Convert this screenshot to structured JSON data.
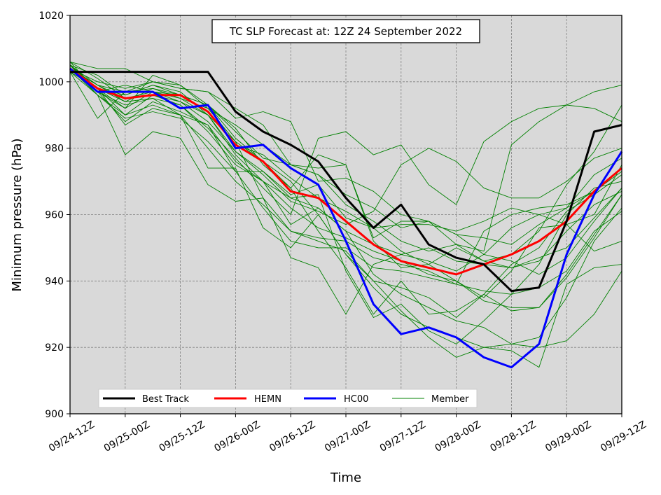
{
  "chart_data": {
    "type": "line",
    "title": "TC SLP Forecast at: 12Z 24 September 2022",
    "xlabel": "Time",
    "ylabel": "Minimum pressure (hPa)",
    "ylim": [
      900,
      1020
    ],
    "yticks": [
      900,
      920,
      940,
      960,
      980,
      1000,
      1020
    ],
    "categories": [
      "09/24-12Z",
      "09/24-18Z",
      "09/25-00Z",
      "09/25-06Z",
      "09/25-12Z",
      "09/25-18Z",
      "09/26-00Z",
      "09/26-06Z",
      "09/26-12Z",
      "09/26-18Z",
      "09/27-00Z",
      "09/27-06Z",
      "09/27-12Z",
      "09/27-18Z",
      "09/28-00Z",
      "09/28-06Z",
      "09/28-12Z",
      "09/28-18Z",
      "09/29-00Z",
      "09/29-06Z",
      "09/29-12Z"
    ],
    "xtick_labels": [
      "09/24-12Z",
      "09/25-00Z",
      "09/25-12Z",
      "09/26-00Z",
      "09/26-12Z",
      "09/27-00Z",
      "09/27-12Z",
      "09/28-00Z",
      "09/28-12Z",
      "09/29-00Z",
      "09/29-12Z"
    ],
    "grid": true,
    "legend_position": "bottom-left",
    "legend": [
      "Best Track",
      "HEMN",
      "HC00",
      "Member"
    ],
    "series": [
      {
        "name": "Best Track",
        "color": "#000000",
        "values": [
          1003,
          1003,
          1003,
          1003,
          1003,
          1003,
          991,
          985,
          981,
          976,
          965,
          956,
          963,
          951,
          947,
          945,
          937,
          938,
          958,
          985,
          987
        ]
      },
      {
        "name": "HEMN",
        "color": "#ff0000",
        "values": [
          1004,
          998,
          995,
          996,
          996,
          991,
          981,
          976,
          967,
          965,
          958,
          951,
          946,
          944,
          942,
          945,
          948,
          952,
          958,
          967,
          974
        ]
      },
      {
        "name": "HC00",
        "color": "#0000ff",
        "values": [
          1004,
          997,
          997,
          997,
          992,
          993,
          980,
          981,
          974,
          969,
          952,
          933,
          924,
          926,
          923,
          917,
          914,
          921,
          948,
          966,
          979
        ]
      }
    ],
    "members": {
      "name": "Member",
      "color": "#008000",
      "values": [
        [
          1006,
          1004,
          1004,
          1000,
          998,
          997,
          992,
          987,
          975,
          972,
          966,
          962,
          956,
          958,
          954,
          953,
          951,
          957,
          962,
          967,
          974
        ],
        [
          1005,
          999,
          995,
          997,
          995,
          992,
          987,
          981,
          975,
          972,
          963,
          958,
          952,
          949,
          951,
          946,
          944,
          947,
          950,
          959,
          968
        ],
        [
          1004,
          997,
          988,
          994,
          991,
          987,
          976,
          970,
          957,
          962,
          955,
          942,
          936,
          932,
          928,
          926,
          921,
          920,
          922,
          930,
          943
        ],
        [
          1005,
          1002,
          996,
          999,
          996,
          993,
          983,
          976,
          970,
          960,
          948,
          938,
          930,
          926,
          923,
          920,
          921,
          923,
          935,
          952,
          962
        ],
        [
          1003,
          996,
          978,
          985,
          983,
          969,
          964,
          965,
          947,
          944,
          930,
          945,
          948,
          950,
          946,
          945,
          944,
          946,
          955,
          963,
          967
        ],
        [
          1004,
          1000,
          998,
          1000,
          998,
          997,
          989,
          991,
          988,
          970,
          971,
          967,
          960,
          958,
          954,
          948,
          946,
          942,
          947,
          958,
          968
        ],
        [
          1005,
          998,
          994,
          998,
          996,
          991,
          981,
          978,
          971,
          965,
          961,
          956,
          949,
          945,
          940,
          934,
          932,
          932,
          941,
          953,
          966
        ],
        [
          1003,
          989,
          997,
          1000,
          999,
          993,
          986,
          975,
          968,
          955,
          944,
          930,
          940,
          930,
          931,
          936,
          931,
          932,
          942,
          954,
          966
        ],
        [
          1004,
          996,
          990,
          996,
          993,
          986,
          977,
          968,
          960,
          983,
          985,
          978,
          981,
          969,
          963,
          982,
          988,
          992,
          993,
          997,
          999
        ],
        [
          1006,
          997,
          992,
          1002,
          999,
          992,
          982,
          965,
          955,
          952,
          949,
          940,
          938,
          935,
          929,
          936,
          945,
          950,
          961,
          966,
          972
        ],
        [
          1004,
          999,
          994,
          995,
          993,
          985,
          975,
          970,
          962,
          956,
          953,
          949,
          946,
          942,
          940,
          935,
          943,
          956,
          957,
          960,
          975
        ],
        [
          1006,
          1001,
          995,
          996,
          994,
          988,
          979,
          972,
          964,
          961,
          957,
          961,
          975,
          980,
          976,
          968,
          965,
          965,
          970,
          977,
          980
        ],
        [
          1005,
          997,
          993,
          995,
          990,
          980,
          970,
          963,
          955,
          953,
          952,
          947,
          945,
          943,
          939,
          937,
          936,
          938,
          943,
          955,
          961
        ],
        [
          1003,
          998,
          987,
          992,
          990,
          974,
          974,
          956,
          950,
          960,
          948,
          940,
          931,
          923,
          917,
          920,
          919,
          914,
          939,
          944,
          945
        ],
        [
          1005,
          998,
          996,
          999,
          997,
          990,
          979,
          973,
          965,
          962,
          955,
          951,
          948,
          946,
          943,
          948,
          956,
          960,
          962,
          972,
          977
        ],
        [
          1004,
          999,
          997,
          998,
          995,
          990,
          978,
          970,
          965,
          966,
          943,
          929,
          933,
          925,
          921,
          928,
          936,
          945,
          960,
          968,
          970
        ],
        [
          1004,
          998,
          992,
          997,
          996,
          993,
          985,
          977,
          975,
          974,
          975,
          952,
          944,
          945,
          950,
          946,
          948,
          955,
          969,
          979,
          993
        ],
        [
          1005,
          996,
          989,
          991,
          989,
          982,
          973,
          973,
          966,
          969,
          959,
          956,
          957,
          957,
          955,
          958,
          962,
          960,
          957,
          949,
          952
        ],
        [
          1004,
          997,
          999,
          997,
          994,
          990,
          982,
          976,
          968,
          978,
          975,
          953,
          958,
          958,
          951,
          949,
          981,
          988,
          993,
          992,
          988
        ],
        [
          1005,
          998,
          990,
          993,
          990,
          987,
          973,
          962,
          952,
          950,
          950,
          944,
          943,
          941,
          939,
          955,
          960,
          962,
          963,
          967,
          973
        ]
      ]
    }
  }
}
